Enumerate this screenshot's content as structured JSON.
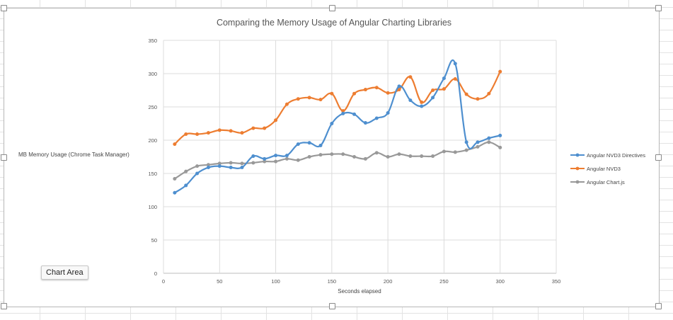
{
  "tooltip": "Chart Area",
  "chart_data": {
    "type": "line",
    "title": "Comparing the Memory Usage of Angular Charting Libraries",
    "xlabel": "Seconds elapsed",
    "ylabel": "MB Memory Usage (Chrome Task Manager)",
    "xlim": [
      0,
      350
    ],
    "ylim": [
      0,
      350
    ],
    "xticks": [
      0,
      50,
      100,
      150,
      200,
      250,
      300,
      350
    ],
    "yticks": [
      0,
      50,
      100,
      150,
      200,
      250,
      300,
      350
    ],
    "grid": true,
    "legend_position": "right",
    "x": [
      10,
      20,
      30,
      40,
      50,
      60,
      70,
      80,
      90,
      100,
      110,
      120,
      130,
      140,
      150,
      160,
      170,
      180,
      190,
      200,
      210,
      220,
      230,
      240,
      250,
      260,
      270,
      280,
      290,
      300
    ],
    "series": [
      {
        "name": "Angular NVD3 Directives",
        "color": "#4e8fcf",
        "values": [
          121,
          132,
          150,
          159,
          161,
          159,
          159,
          176,
          172,
          177,
          177,
          194,
          196,
          192,
          225,
          240,
          239,
          226,
          233,
          241,
          281,
          260,
          251,
          264,
          293,
          315,
          197,
          197,
          203,
          207
        ]
      },
      {
        "name": "Angular NVD3",
        "color": "#ed7d31",
        "values": [
          194,
          209,
          209,
          211,
          215,
          214,
          211,
          218,
          218,
          230,
          254,
          262,
          264,
          261,
          270,
          244,
          270,
          276,
          279,
          271,
          276,
          295,
          257,
          275,
          277,
          292,
          269,
          262,
          270,
          303
        ]
      },
      {
        "name": "Angular Chart.js",
        "color": "#999999",
        "values": [
          142,
          153,
          161,
          163,
          165,
          166,
          165,
          166,
          168,
          168,
          172,
          170,
          175,
          178,
          179,
          179,
          175,
          172,
          181,
          175,
          179,
          176,
          176,
          176,
          183,
          182,
          185,
          190,
          197,
          189
        ]
      }
    ]
  }
}
